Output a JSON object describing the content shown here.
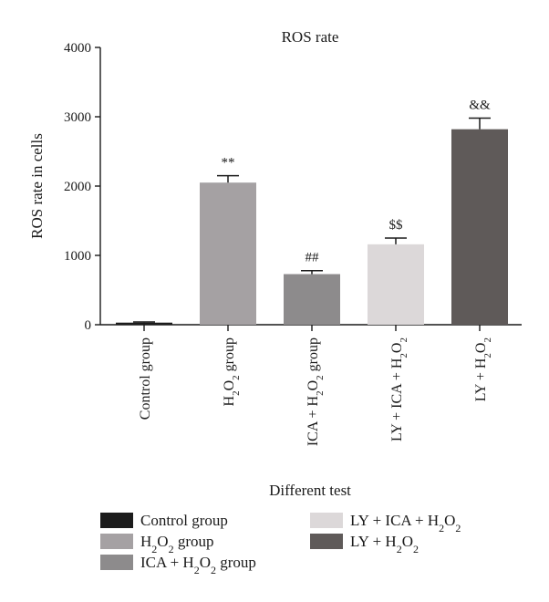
{
  "chart_data": {
    "type": "bar",
    "title": "ROS rate",
    "xlabel": "Different test",
    "ylabel": "ROS rate in cells",
    "ylim": [
      0,
      4000
    ],
    "yticks": [
      0,
      1000,
      2000,
      3000,
      4000
    ],
    "categories": [
      "Control group",
      "H2O2 group",
      "ICA + H2O2 group",
      "LY + ICA + H2O2",
      "LY + H2O2"
    ],
    "values": [
      30,
      2050,
      730,
      1160,
      2820
    ],
    "errors": [
      10,
      100,
      50,
      90,
      160
    ],
    "annotations": [
      "",
      "**",
      "##",
      "$$",
      "&&"
    ],
    "colors": [
      "#1c1c1c",
      "#a5a1a3",
      "#8d8b8c",
      "#dcd8d9",
      "#5f5a59"
    ],
    "legend": {
      "placement": "bottom",
      "entries": [
        "Control group",
        "H2O2 group",
        "ICA + H2O2 group",
        "LY + ICA + H2O2",
        "LY + H2O2"
      ]
    },
    "grid": false
  }
}
